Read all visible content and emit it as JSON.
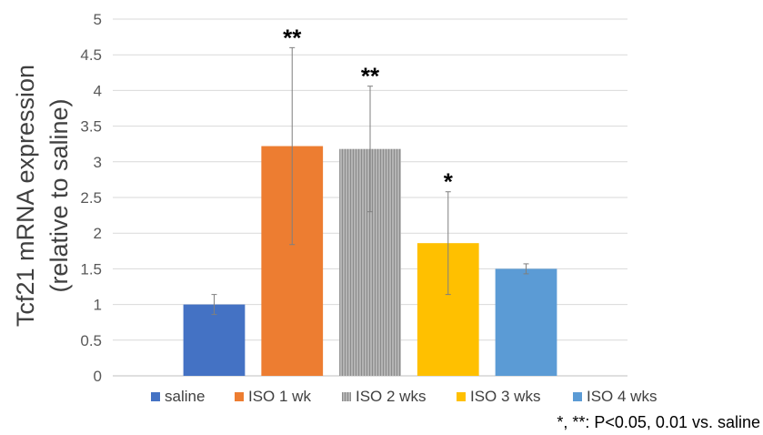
{
  "chart_data": {
    "type": "bar",
    "ylabel_lines": [
      "Tcf21 mRNA expression",
      "(relative to saline)"
    ],
    "categories": [
      "saline",
      "ISO 1 wk",
      "ISO 2 wks",
      "ISO 3 wks",
      "ISO 4 wks"
    ],
    "values": [
      1.0,
      3.22,
      3.18,
      1.86,
      1.5
    ],
    "errors": [
      0.14,
      1.38,
      0.88,
      0.72,
      0.07
    ],
    "significance": [
      "",
      "**",
      "**",
      "*",
      ""
    ],
    "colors": [
      "#4472C4",
      "#ED7D31",
      "#A5A5A5",
      "#FFC000",
      "#5B9BD5"
    ],
    "ylim": [
      0,
      5
    ],
    "yticks": [
      "0",
      "0.5",
      "1",
      "1.5",
      "2",
      "2.5",
      "3",
      "3.5",
      "4",
      "4.5",
      "5"
    ],
    "grid": true,
    "legend_position": "bottom",
    "note": "*, **: P<0.05, 0.01 vs. saline"
  }
}
